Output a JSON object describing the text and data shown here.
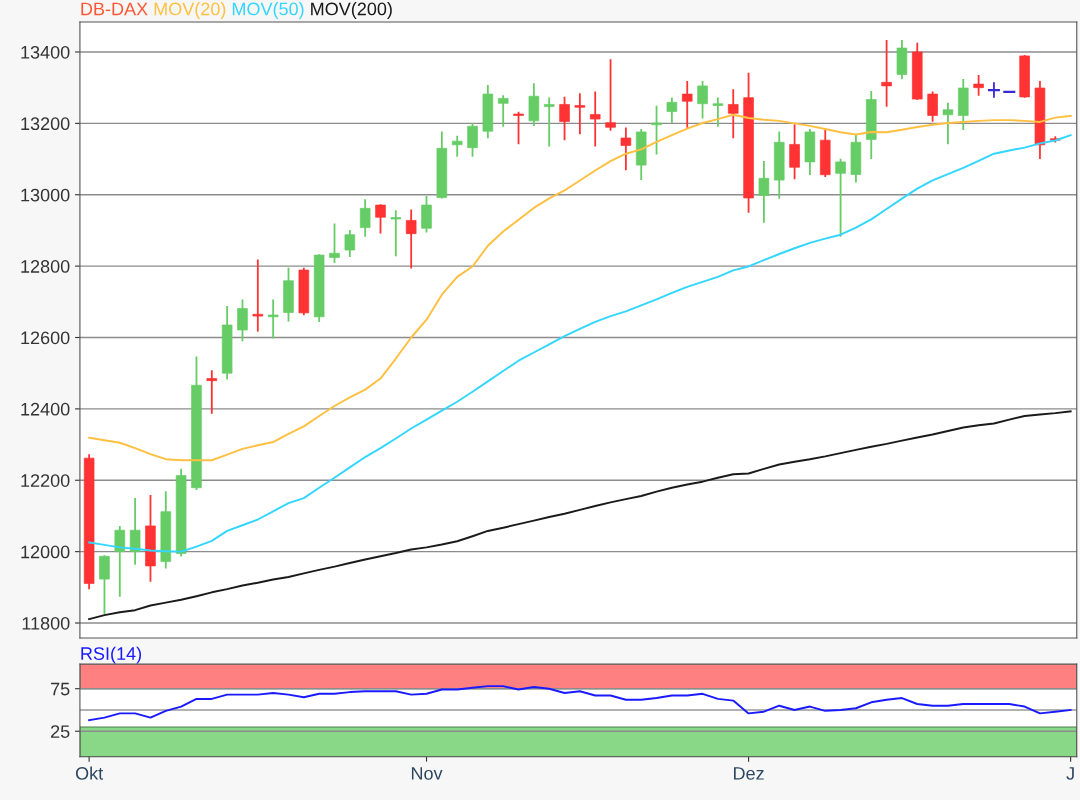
{
  "chart_data": [
    {
      "type": "candlestick",
      "title": "DB-DAX",
      "legend": "top left",
      "grid": "y",
      "tick_labels": "y",
      "categories": [
        null,
        null,
        null,
        null,
        null,
        null,
        null,
        null,
        null,
        null,
        null,
        null,
        null,
        null,
        null,
        null,
        null,
        null,
        null,
        null,
        null,
        null,
        null,
        null,
        null,
        null,
        null,
        null,
        null,
        null,
        null,
        null,
        null,
        null,
        null,
        null,
        null,
        null,
        null,
        null,
        null,
        null,
        null,
        null,
        null,
        null,
        null,
        null,
        null,
        null,
        null,
        null,
        null,
        null,
        null,
        null,
        null,
        null,
        null,
        null,
        null,
        null,
        null,
        null,
        null
      ],
      "ohlc": [
        [
          12262,
          12270,
          11897,
          11911
        ],
        [
          11923,
          11987,
          11828,
          11987
        ],
        [
          12000,
          12069,
          11876,
          12060
        ],
        [
          12000,
          12148,
          11966,
          12060
        ],
        [
          12072,
          12156,
          11918,
          11960
        ],
        [
          11972,
          12167,
          11955,
          12112
        ],
        [
          11995,
          12230,
          11989,
          12213
        ],
        [
          12179,
          12544,
          12175,
          12466
        ],
        [
          12485,
          12506,
          12389,
          12479
        ],
        [
          12500,
          12686,
          12485,
          12635
        ],
        [
          12621,
          12704,
          12592,
          12681
        ],
        [
          12665,
          12816,
          12619,
          12660
        ],
        [
          12658,
          12704,
          12600,
          12663
        ],
        [
          12670,
          12793,
          12647,
          12759
        ],
        [
          12789,
          12793,
          12665,
          12669
        ],
        [
          12658,
          12831,
          12646,
          12831
        ],
        [
          12824,
          12917,
          12811,
          12836
        ],
        [
          12845,
          12899,
          12828,
          12888
        ],
        [
          12908,
          12985,
          12885,
          12962
        ],
        [
          12971,
          12971,
          12894,
          12937
        ],
        [
          12932,
          12954,
          12830,
          12936
        ],
        [
          12928,
          12956,
          12796,
          12891
        ],
        [
          12906,
          12994,
          12897,
          12971
        ],
        [
          12992,
          13175,
          12992,
          13130
        ],
        [
          13140,
          13163,
          13109,
          13150
        ],
        [
          13132,
          13198,
          13109,
          13192
        ],
        [
          13178,
          13305,
          13161,
          13282
        ],
        [
          13256,
          13276,
          13193,
          13270
        ],
        [
          13226,
          13230,
          13144,
          13222
        ],
        [
          13207,
          13310,
          13195,
          13276
        ],
        [
          13247,
          13270,
          13138,
          13253
        ],
        [
          13253,
          13272,
          13155,
          13205
        ],
        [
          13250,
          13282,
          13172,
          13245
        ],
        [
          13225,
          13287,
          13138,
          13212
        ],
        [
          13202,
          13377,
          13182,
          13189
        ],
        [
          13159,
          13186,
          13071,
          13138
        ],
        [
          13083,
          13182,
          13044,
          13176
        ],
        [
          13196,
          13247,
          13115,
          13201
        ],
        [
          13233,
          13270,
          13204,
          13259
        ],
        [
          13282,
          13316,
          13190,
          13262
        ],
        [
          13255,
          13316,
          13216,
          13305
        ],
        [
          13250,
          13270,
          13193,
          13255
        ],
        [
          13253,
          13293,
          13161,
          13228
        ],
        [
          13272,
          13339,
          12952,
          12991
        ],
        [
          12998,
          13092,
          12924,
          13046
        ],
        [
          13041,
          13175,
          12991,
          13147
        ],
        [
          13141,
          13195,
          13046,
          13077
        ],
        [
          13092,
          13182,
          13058,
          13176
        ],
        [
          13153,
          13182,
          13052,
          13056
        ],
        [
          13060,
          13098,
          12885,
          13092
        ],
        [
          13057,
          13167,
          13037,
          13147
        ],
        [
          13155,
          13288,
          13103,
          13267
        ],
        [
          13315,
          13431,
          13249,
          13305
        ],
        [
          13337,
          13431,
          13326,
          13411
        ],
        [
          13400,
          13423,
          13268,
          13268
        ],
        [
          13282,
          13287,
          13207,
          13222
        ],
        [
          13224,
          13255,
          13144,
          13238
        ],
        [
          13222,
          13322,
          13184,
          13299
        ],
        [
          13310,
          13333,
          13280,
          13300
        ],
        [
          13293,
          13313,
          13274,
          13293
        ],
        [
          13288,
          13288,
          13288,
          13288
        ],
        [
          13389,
          13389,
          13274,
          13274
        ],
        [
          13299,
          13316,
          13103,
          13140
        ],
        [
          13157,
          13161,
          13149,
          13153
        ],
        null
      ],
      "colors": [
        "#ff3333",
        "#66cc66",
        "#66cc66",
        "#66cc66",
        "#ff3333",
        "#66cc66",
        "#66cc66",
        "#66cc66",
        "#ff3333",
        "#66cc66",
        "#66cc66",
        "#ff3333",
        "#66cc66",
        "#66cc66",
        "#ff3333",
        "#66cc66",
        "#66cc66",
        "#66cc66",
        "#66cc66",
        "#ff3333",
        "#66cc66",
        "#ff3333",
        "#66cc66",
        "#66cc66",
        "#66cc66",
        "#66cc66",
        "#66cc66",
        "#66cc66",
        "#ff3333",
        "#66cc66",
        "#66cc66",
        "#ff3333",
        "#ff3333",
        "#ff3333",
        "#ff3333",
        "#ff3333",
        "#66cc66",
        "#66cc66",
        "#66cc66",
        "#ff3333",
        "#66cc66",
        "#66cc66",
        "#ff3333",
        "#ff3333",
        "#66cc66",
        "#66cc66",
        "#ff3333",
        "#66cc66",
        "#ff3333",
        "#66cc66",
        "#66cc66",
        "#66cc66",
        "#ff3333",
        "#66cc66",
        "#ff3333",
        "#ff3333",
        "#66cc66",
        "#66cc66",
        "#ff3333",
        "#3a2ad6",
        "#3a2ad6",
        "#ff3333",
        "#ff3333",
        "#ff3333",
        null
      ],
      "series": [
        {
          "name": "MOV(20)",
          "type": "line",
          "color": "#ffbf40",
          "values": [
            12319,
            12312,
            12305,
            12290,
            12273,
            12259,
            12256,
            12256,
            12256,
            12272,
            12288,
            12298,
            12307,
            12330,
            12351,
            12380,
            12408,
            12432,
            12454,
            12485,
            12541,
            12600,
            12650,
            12720,
            12770,
            12799,
            12857,
            12897,
            12930,
            12963,
            12990,
            13012,
            13040,
            13068,
            13094,
            13115,
            13127,
            13148,
            13167,
            13185,
            13201,
            13212,
            13224,
            13215,
            13210,
            13207,
            13200,
            13193,
            13184,
            13175,
            13169,
            13176,
            13175,
            13182,
            13190,
            13196,
            13201,
            13204,
            13207,
            13209,
            13209,
            13207,
            13204,
            13216,
            13221
          ]
        },
        {
          "name": "MOV(50)",
          "type": "line",
          "color": "#33d6ff",
          "values": [
            12026,
            12019,
            12012,
            12008,
            12003,
            12001,
            12000,
            12014,
            12030,
            12058,
            12074,
            12090,
            12113,
            12136,
            12150,
            12179,
            12207,
            12236,
            12265,
            12290,
            12317,
            12345,
            12370,
            12395,
            12420,
            12448,
            12477,
            12506,
            12535,
            12558,
            12581,
            12604,
            12624,
            12644,
            12660,
            12673,
            12690,
            12707,
            12725,
            12742,
            12756,
            12770,
            12788,
            12799,
            12817,
            12834,
            12850,
            12865,
            12877,
            12888,
            12908,
            12931,
            12960,
            12989,
            13017,
            13040,
            13058,
            13075,
            13095,
            13115,
            13124,
            13132,
            13144,
            13152,
            13167
          ]
        },
        {
          "name": "MOV(200)",
          "type": "line",
          "color": "#1a1a1a",
          "values": [
            11811,
            11822,
            11830,
            11836,
            11849,
            11857,
            11865,
            11875,
            11886,
            11895,
            11905,
            11913,
            11922,
            11929,
            11939,
            11949,
            11958,
            11968,
            11978,
            11987,
            11996,
            12006,
            12012,
            12020,
            12029,
            12043,
            12058,
            12067,
            12077,
            12087,
            12097,
            12106,
            12117,
            12128,
            12138,
            12147,
            12156,
            12168,
            12179,
            12188,
            12196,
            12207,
            12217,
            12219,
            12232,
            12244,
            12252,
            12259,
            12267,
            12276,
            12285,
            12294,
            12302,
            12311,
            12320,
            12328,
            12338,
            12348,
            12354,
            12359,
            12370,
            12380,
            12384,
            12388,
            12393
          ]
        }
      ],
      "ylim": [
        11758,
        13484
      ],
      "yticks": [
        11800,
        12000,
        12200,
        12400,
        12600,
        12800,
        13000,
        13200,
        13400
      ]
    },
    {
      "type": "line",
      "legend": "top left",
      "grid": "y",
      "categories": [
        "Okt",
        null,
        null,
        null,
        null,
        null,
        null,
        null,
        null,
        null,
        null,
        null,
        null,
        null,
        null,
        null,
        null,
        null,
        null,
        null,
        null,
        null,
        "Nov",
        null,
        null,
        null,
        null,
        null,
        null,
        null,
        null,
        null,
        null,
        null,
        null,
        null,
        null,
        null,
        null,
        null,
        null,
        null,
        null,
        "Dez",
        null,
        null,
        null,
        null,
        null,
        null,
        null,
        null,
        null,
        null,
        null,
        null,
        null,
        null,
        null,
        null,
        null,
        null,
        null,
        null,
        "J"
      ],
      "series": [
        {
          "name": "RSI(14)",
          "color": "#1a1aff",
          "values": [
            38,
            41,
            46,
            46,
            41,
            49,
            54,
            63,
            63,
            68,
            68,
            68,
            70,
            68,
            65,
            69,
            69,
            71,
            72,
            72,
            72,
            68,
            69,
            74,
            74,
            76,
            78,
            78,
            74,
            77,
            75,
            70,
            72,
            67,
            67,
            62,
            62,
            64,
            67,
            67,
            69,
            63,
            61,
            46,
            48,
            55,
            50,
            54,
            49,
            50,
            52,
            59,
            62,
            64,
            57,
            55,
            55,
            57,
            57,
            57,
            57,
            54,
            46,
            48,
            50
          ]
        }
      ],
      "ylim": [
        -5,
        104
      ],
      "yticks": [
        25,
        75
      ],
      "ref_lines": [
        {
          "axis": "y",
          "value": 50,
          "color": "#999999"
        }
      ],
      "bands": [
        {
          "axis": "y",
          "from": 75,
          "to": 104,
          "color": "#ff8080"
        },
        {
          "axis": "y",
          "from": -5,
          "to": 30,
          "color": "#88d888"
        }
      ]
    }
  ]
}
